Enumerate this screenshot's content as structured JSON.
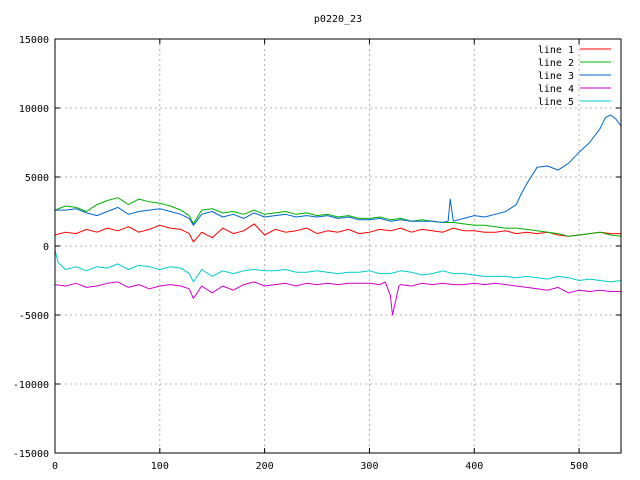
{
  "chart_data": {
    "type": "line",
    "title": "p0220_23",
    "xlabel": "",
    "ylabel": "",
    "xlim": [
      0,
      540
    ],
    "ylim": [
      -15000,
      15000
    ],
    "xticks": [
      0,
      100,
      200,
      300,
      400,
      500
    ],
    "yticks": [
      -15000,
      -10000,
      -5000,
      0,
      5000,
      10000,
      15000
    ],
    "grid": true,
    "legend_position": "top-right",
    "series": [
      {
        "name": "line 1",
        "color": "#ff0000",
        "x": [
          0,
          10,
          20,
          30,
          40,
          50,
          60,
          70,
          80,
          90,
          100,
          110,
          120,
          128,
          132,
          140,
          150,
          160,
          170,
          180,
          190,
          200,
          210,
          220,
          230,
          240,
          250,
          260,
          270,
          280,
          290,
          300,
          310,
          320,
          330,
          340,
          350,
          360,
          370,
          380,
          390,
          400,
          410,
          420,
          430,
          440,
          450,
          460,
          470,
          480,
          490,
          500,
          510,
          520,
          530,
          540
        ],
        "y": [
          800,
          1000,
          900,
          1200,
          1000,
          1300,
          1100,
          1400,
          1000,
          1200,
          1500,
          1300,
          1200,
          900,
          300,
          1000,
          600,
          1300,
          900,
          1100,
          1600,
          800,
          1200,
          1000,
          1100,
          1300,
          900,
          1100,
          1000,
          1200,
          900,
          1000,
          1200,
          1100,
          1300,
          1000,
          1200,
          1100,
          1000,
          1300,
          1100,
          1100,
          1000,
          1000,
          1100,
          900,
          1000,
          900,
          1000,
          800,
          700,
          800,
          900,
          1000,
          900,
          900
        ]
      },
      {
        "name": "line 2",
        "color": "#00b000",
        "x": [
          0,
          10,
          20,
          30,
          40,
          50,
          60,
          70,
          80,
          90,
          100,
          110,
          120,
          128,
          132,
          140,
          150,
          160,
          170,
          180,
          190,
          200,
          210,
          220,
          230,
          240,
          250,
          260,
          270,
          280,
          290,
          300,
          310,
          320,
          330,
          340,
          350,
          360,
          370,
          380,
          390,
          400,
          410,
          420,
          430,
          440,
          450,
          460,
          470,
          480,
          490,
          500,
          510,
          520,
          530,
          540
        ],
        "y": [
          2600,
          2900,
          2800,
          2500,
          3000,
          3300,
          3500,
          3000,
          3400,
          3200,
          3100,
          2900,
          2600,
          2200,
          1600,
          2600,
          2700,
          2400,
          2500,
          2300,
          2600,
          2300,
          2400,
          2500,
          2300,
          2400,
          2200,
          2300,
          2100,
          2200,
          2000,
          2000,
          2100,
          1900,
          2000,
          1800,
          1900,
          1800,
          1700,
          1700,
          1600,
          1500,
          1500,
          1400,
          1300,
          1300,
          1200,
          1100,
          1000,
          900,
          700,
          800,
          900,
          1000,
          800,
          700
        ]
      },
      {
        "name": "line 3",
        "color": "#0066cc",
        "x": [
          0,
          10,
          20,
          30,
          40,
          50,
          60,
          70,
          80,
          90,
          100,
          110,
          120,
          128,
          132,
          140,
          150,
          160,
          170,
          180,
          190,
          200,
          210,
          220,
          230,
          240,
          250,
          260,
          270,
          280,
          290,
          300,
          310,
          320,
          330,
          340,
          350,
          360,
          370,
          375,
          377,
          380,
          390,
          400,
          410,
          420,
          430,
          440,
          445,
          450,
          460,
          470,
          480,
          490,
          500,
          510,
          520,
          525,
          530,
          535,
          540
        ],
        "y": [
          2600,
          2600,
          2700,
          2400,
          2200,
          2500,
          2800,
          2300,
          2500,
          2600,
          2700,
          2500,
          2300,
          2000,
          1500,
          2300,
          2500,
          2100,
          2300,
          2000,
          2400,
          2100,
          2200,
          2300,
          2100,
          2200,
          2100,
          2200,
          2000,
          2100,
          1900,
          1900,
          2000,
          1800,
          1900,
          1800,
          1800,
          1800,
          1700,
          1800,
          3400,
          1800,
          2000,
          2200,
          2100,
          2300,
          2500,
          3000,
          3800,
          4500,
          5700,
          5800,
          5500,
          6000,
          6800,
          7500,
          8500,
          9300,
          9500,
          9200,
          8700
        ]
      },
      {
        "name": "line 4",
        "color": "#cc00cc",
        "x": [
          0,
          10,
          20,
          30,
          40,
          50,
          60,
          70,
          80,
          90,
          100,
          110,
          120,
          128,
          132,
          140,
          150,
          160,
          170,
          180,
          190,
          200,
          210,
          220,
          230,
          240,
          250,
          260,
          270,
          280,
          290,
          300,
          310,
          315,
          320,
          322,
          325,
          328,
          330,
          340,
          350,
          360,
          370,
          380,
          390,
          400,
          410,
          420,
          430,
          440,
          450,
          460,
          470,
          480,
          490,
          500,
          510,
          520,
          530,
          540
        ],
        "y": [
          -2800,
          -2900,
          -2700,
          -3000,
          -2900,
          -2700,
          -2600,
          -3000,
          -2800,
          -3100,
          -2900,
          -2800,
          -2900,
          -3100,
          -3800,
          -2900,
          -3400,
          -2900,
          -3200,
          -2800,
          -2600,
          -2900,
          -2800,
          -2700,
          -2900,
          -2700,
          -2800,
          -2700,
          -2800,
          -2700,
          -2700,
          -2700,
          -2800,
          -2600,
          -3600,
          -5000,
          -4000,
          -2900,
          -2800,
          -2900,
          -2700,
          -2800,
          -2700,
          -2800,
          -2800,
          -2700,
          -2800,
          -2700,
          -2800,
          -2900,
          -3000,
          -3100,
          -3200,
          -3000,
          -3400,
          -3200,
          -3300,
          -3200,
          -3300,
          -3300
        ]
      },
      {
        "name": "line 5",
        "color": "#00cccc",
        "x": [
          0,
          3,
          10,
          20,
          30,
          40,
          50,
          60,
          70,
          80,
          90,
          100,
          110,
          120,
          128,
          132,
          140,
          150,
          160,
          170,
          180,
          190,
          200,
          210,
          220,
          230,
          240,
          250,
          260,
          270,
          280,
          290,
          300,
          310,
          320,
          330,
          340,
          350,
          360,
          370,
          380,
          390,
          400,
          410,
          420,
          430,
          440,
          450,
          460,
          470,
          480,
          490,
          500,
          510,
          520,
          530,
          540
        ],
        "y": [
          -300,
          -1200,
          -1700,
          -1500,
          -1800,
          -1500,
          -1600,
          -1300,
          -1700,
          -1400,
          -1500,
          -1700,
          -1500,
          -1600,
          -2000,
          -2600,
          -1700,
          -2200,
          -1800,
          -2000,
          -1800,
          -1700,
          -1800,
          -1800,
          -1700,
          -1900,
          -1900,
          -1800,
          -1900,
          -2000,
          -1900,
          -1900,
          -1800,
          -2000,
          -2000,
          -1800,
          -1900,
          -2100,
          -2000,
          -1800,
          -2000,
          -2000,
          -2100,
          -2200,
          -2200,
          -2200,
          -2300,
          -2200,
          -2300,
          -2400,
          -2200,
          -2300,
          -2500,
          -2400,
          -2500,
          -2600,
          -2500
        ]
      }
    ]
  }
}
